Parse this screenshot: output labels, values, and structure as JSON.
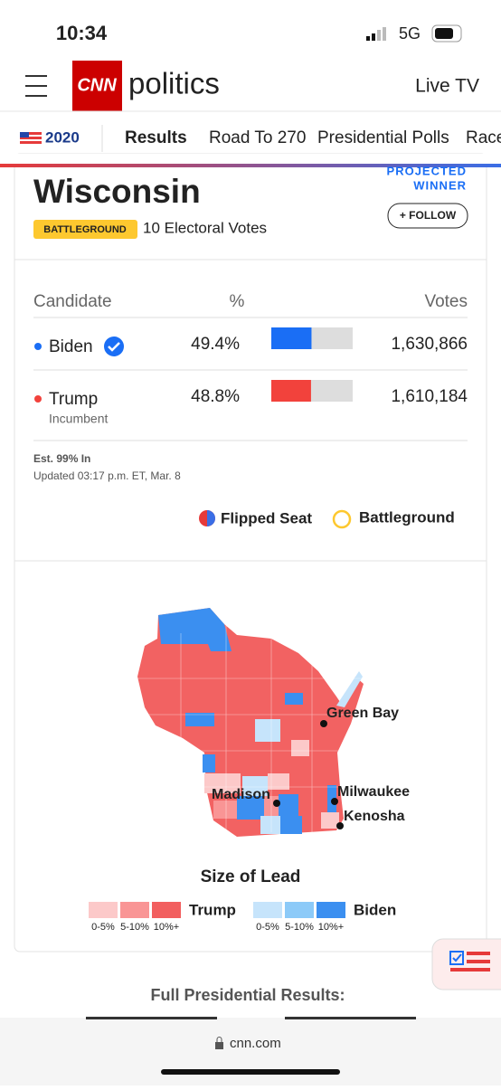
{
  "status_bar": {
    "time": "10:34",
    "network": "5G"
  },
  "header": {
    "logo": "CNN",
    "section": "politics",
    "live": "Live TV"
  },
  "nav": {
    "year": "2020",
    "tabs": [
      "Results",
      "Road To 270",
      "Presidential Polls",
      "Race"
    ]
  },
  "card": {
    "state": "Wisconsin",
    "projected": "PROJECTED",
    "winner": "WINNER",
    "badge": "BATTLEGROUND",
    "electoral": "10 Electoral Votes",
    "follow": "+ FOLLOW",
    "table": {
      "headers": [
        "Candidate",
        "%",
        "Votes"
      ],
      "rows": [
        {
          "name": "Biden",
          "note": null,
          "pct": {
            "value": 49.4,
            "label": "49.4%"
          },
          "votes": "1,630,866",
          "color": "#1a6ef5"
        },
        {
          "name": "Trump",
          "note": "Incumbent",
          "pct": {
            "value": 48.8,
            "label": "48.8%"
          },
          "votes": "1,610,184",
          "color": "#f2423c"
        }
      ]
    },
    "est": "Est. 99% In",
    "updated": "Updated 03:17 p.m. ET, Mar. 8",
    "legend": [
      "Flipped Seat",
      "Battleground"
    ]
  },
  "map": {
    "cities": [
      "Green Bay",
      "Madison",
      "Milwaukee",
      "Kenosha"
    ],
    "title": "Size of Lead",
    "trump": {
      "name": "Trump",
      "bins": [
        "0-5%",
        "5-10%",
        "10%+"
      ],
      "colors": [
        "#fcc9c9",
        "#f99595",
        "#f25f5f"
      ]
    },
    "biden": {
      "name": "Biden",
      "bins": [
        "0-5%",
        "5-10%",
        "10%+"
      ],
      "colors": [
        "#c6e4fb",
        "#8ccaf8",
        "#3b8ff0"
      ]
    }
  },
  "footer": {
    "heading": "Full Presidential Results:",
    "url": "cnn.com"
  }
}
